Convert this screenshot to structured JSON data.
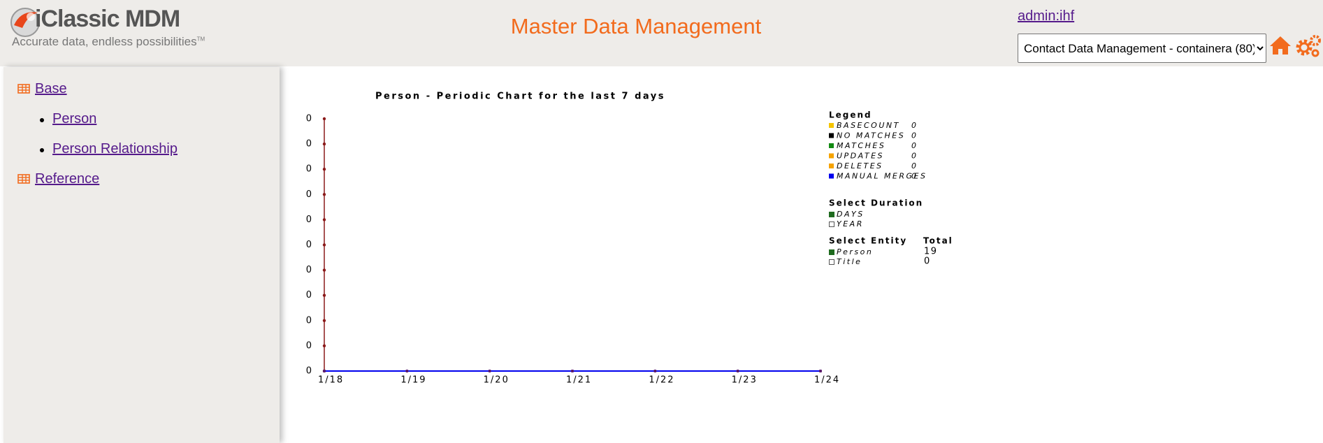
{
  "header": {
    "logo_text": "iClassic MDM",
    "tagline": "Accurate data, endless possibilities",
    "trademark": "TM",
    "title": "Master Data Management",
    "user": "admin:ihf",
    "container_select": "Contact Data Management - containera (80)"
  },
  "sidebar": {
    "groups": [
      {
        "label": "Base",
        "items": [
          "Person",
          "Person Relationship"
        ]
      },
      {
        "label": "Reference",
        "items": []
      }
    ]
  },
  "chart_data": {
    "type": "line",
    "title": "Person - Periodic Chart for the last 7 days",
    "y_tick_labels": [
      "0",
      "0",
      "0",
      "0",
      "0",
      "0",
      "0",
      "0",
      "0",
      "0",
      "0"
    ],
    "categories": [
      "1/18",
      "1/19",
      "1/20",
      "1/21",
      "1/22",
      "1/23",
      "1/24"
    ],
    "legend_title": "Legend",
    "series": [
      {
        "name": "BASECOUNT",
        "color": "#f5c400",
        "values": [
          0,
          0,
          0,
          0,
          0,
          0,
          0
        ],
        "total": 0
      },
      {
        "name": "NO MATCHES",
        "color": "#000000",
        "values": [
          0,
          0,
          0,
          0,
          0,
          0,
          0
        ],
        "total": 0
      },
      {
        "name": "MATCHES",
        "color": "#138a13",
        "values": [
          0,
          0,
          0,
          0,
          0,
          0,
          0
        ],
        "total": 0
      },
      {
        "name": "UPDATES",
        "color": "#f5a300",
        "values": [
          0,
          0,
          0,
          0,
          0,
          0,
          0
        ],
        "total": 0
      },
      {
        "name": "DELETES",
        "color": "#f5a300",
        "values": [
          0,
          0,
          0,
          0,
          0,
          0,
          0
        ],
        "total": 0
      },
      {
        "name": "MANUAL MERGES",
        "color": "#0000ee",
        "values": [
          0,
          0,
          0,
          0,
          0,
          0,
          0
        ],
        "total": 0
      }
    ],
    "duration": {
      "title": "Select Duration",
      "options": [
        {
          "label": "DAYS",
          "selected": true
        },
        {
          "label": "YEAR",
          "selected": false
        }
      ]
    },
    "entity": {
      "title": "Select Entity",
      "total_title": "Total",
      "options": [
        {
          "label": "Person",
          "total": 19,
          "selected": true
        },
        {
          "label": "Title",
          "total": 0,
          "selected": false
        }
      ]
    }
  }
}
